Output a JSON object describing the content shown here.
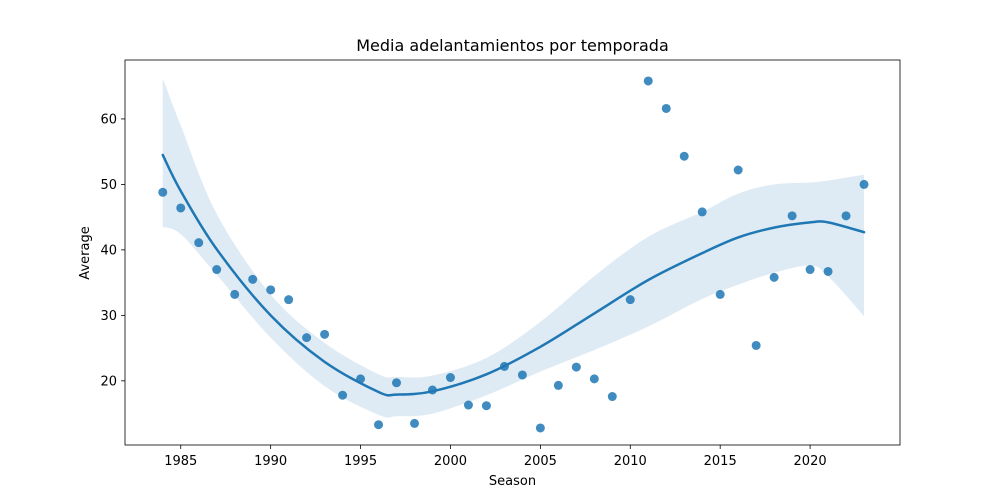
{
  "chart_data": {
    "type": "scatter",
    "title": "Media adelantamientos por temporada",
    "xlabel": "Season",
    "ylabel": "Average",
    "xlim": [
      1981.9,
      2025.0
    ],
    "ylim": [
      10.2,
      69.0
    ],
    "xticks": [
      1985,
      1990,
      1995,
      2000,
      2005,
      2010,
      2015,
      2020
    ],
    "yticks": [
      20,
      30,
      40,
      50,
      60
    ],
    "grid": false,
    "legend": "none",
    "colors": {
      "points": "#1f77b4",
      "line": "#1f77b4",
      "band": "#1f77b4"
    },
    "points": {
      "x": [
        1984,
        1985,
        1986,
        1987,
        1988,
        1989,
        1990,
        1991,
        1992,
        1993,
        1994,
        1995,
        1996,
        1997,
        1998,
        1999,
        2000,
        2001,
        2002,
        2003,
        2004,
        2005,
        2006,
        2007,
        2008,
        2009,
        2010,
        2011,
        2012,
        2013,
        2014,
        2015,
        2016,
        2017,
        2018,
        2019,
        2020,
        2021,
        2022,
        2023
      ],
      "y": [
        48.8,
        46.4,
        41.1,
        37.0,
        33.2,
        35.5,
        33.9,
        32.4,
        26.6,
        27.1,
        17.8,
        20.3,
        13.3,
        19.7,
        13.5,
        18.6,
        20.5,
        16.3,
        16.2,
        22.2,
        20.9,
        12.8,
        19.3,
        22.1,
        20.3,
        17.6,
        32.4,
        65.8,
        61.6,
        54.3,
        45.8,
        33.2,
        52.2,
        25.4,
        35.8,
        45.2,
        37.0,
        36.7,
        45.2,
        50.0
      ]
    },
    "fit": {
      "x": [
        1984,
        1985,
        1987,
        1990,
        1993,
        1996,
        1997,
        1999,
        2002,
        2005,
        2008,
        2011,
        2014,
        2016,
        2018,
        2020,
        2021,
        2023
      ],
      "y": [
        54.5,
        49.0,
        40.1,
        30.0,
        22.9,
        18.3,
        17.9,
        18.4,
        21.0,
        25.2,
        30.3,
        35.4,
        39.5,
        41.9,
        43.4,
        44.2,
        44.2,
        42.7
      ]
    },
    "ci_band": {
      "x": [
        1984,
        1985,
        1987,
        1990,
        1993,
        1996,
        1997,
        1999,
        2002,
        2005,
        2008,
        2011,
        2014,
        2016,
        2018,
        2020,
        2021,
        2023
      ],
      "lower": [
        43.5,
        42.4,
        36.2,
        26.6,
        19.2,
        14.8,
        14.6,
        15.0,
        17.8,
        21.4,
        24.7,
        28.3,
        32.5,
        34.7,
        36.5,
        37.6,
        36.0,
        29.9
      ],
      "upper": [
        66.2,
        59.0,
        45.5,
        33.2,
        25.8,
        21.0,
        20.6,
        20.8,
        23.5,
        29.0,
        36.0,
        42.0,
        45.8,
        48.6,
        50.0,
        50.3,
        50.6,
        51.5
      ]
    }
  }
}
